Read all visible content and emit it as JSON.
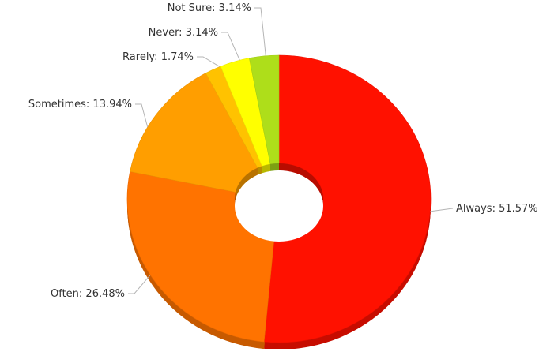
{
  "chart_data": {
    "type": "pie",
    "variant": "donut-3d",
    "title": "",
    "slices": [
      {
        "label": "Always",
        "value": 51.57,
        "display": "Always: 51.57%",
        "color": "#ff1100"
      },
      {
        "label": "Often",
        "value": 26.48,
        "display": "Often: 26.48%",
        "color": "#ff7300"
      },
      {
        "label": "Sometimes",
        "value": 13.94,
        "display": "Sometimes: 13.94%",
        "color": "#ff9e00"
      },
      {
        "label": "Rarely",
        "value": 1.74,
        "display": "Rarely: 1.74%",
        "color": "#ffc200"
      },
      {
        "label": "Never",
        "value": 3.14,
        "display": "Never: 3.14%",
        "color": "#ffff00"
      },
      {
        "label": "Not Sure",
        "value": 3.14,
        "display": "Not Sure: 3.14%",
        "color": "#aede1a"
      }
    ],
    "start_angle_deg": 0,
    "direction": "clockwise",
    "legend": "none"
  }
}
